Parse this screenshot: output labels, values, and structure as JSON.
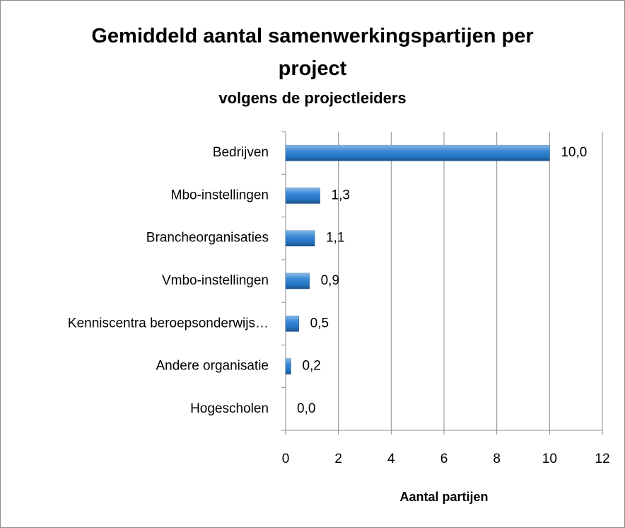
{
  "chart_data": {
    "type": "bar",
    "orientation": "horizontal",
    "title": "Gemiddeld aantal samenwerkingspartijen per project",
    "subtitle": "volgens de projectleiders",
    "x_label": "Aantal partijen",
    "categories": [
      "Bedrijven",
      "Mbo-instellingen",
      "Brancheorganisaties",
      "Vmbo-instellingen",
      "Kenniscentra beroepsonderwijs…",
      "Andere organisatie",
      "Hogescholen"
    ],
    "values": [
      10.0,
      1.3,
      1.1,
      0.9,
      0.5,
      0.2,
      0.0
    ],
    "value_labels": [
      "10,0",
      "1,3",
      "1,1",
      "0,9",
      "0,5",
      "0,2",
      "0,0"
    ],
    "color": "#2a7fd4",
    "xlim": [
      0,
      12
    ],
    "xticks": [
      0,
      2,
      4,
      6,
      8,
      10,
      12
    ],
    "grid": true
  }
}
